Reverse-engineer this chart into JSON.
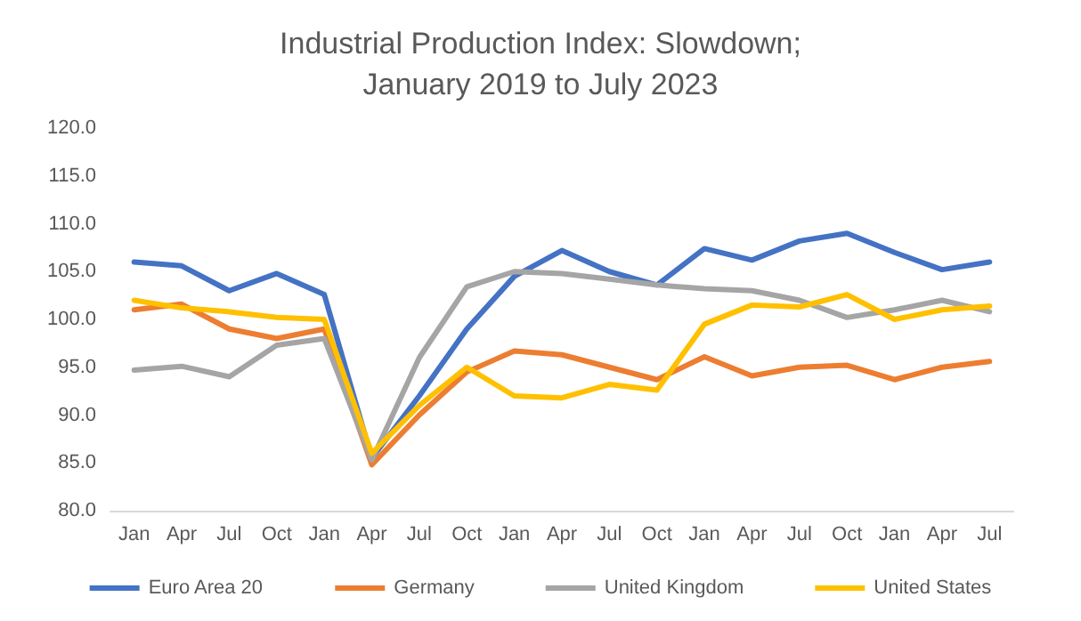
{
  "chart_data": {
    "type": "line",
    "title": "Industrial Production Index: Slowdown;\nJanuary 2019 to July 2023",
    "categories": [
      "Jan",
      "Apr",
      "Jul",
      "Oct",
      "Jan",
      "Apr",
      "Jul",
      "Oct",
      "Jan",
      "Apr",
      "Jul",
      "Oct",
      "Jan",
      "Apr",
      "Jul",
      "Oct",
      "Jan",
      "Apr",
      "Jul"
    ],
    "series": [
      {
        "name": "Euro Area 20",
        "color": "#4472c4",
        "values": [
          106,
          105.6,
          103,
          104.8,
          102.6,
          85.5,
          92,
          99,
          104.5,
          107.2,
          105,
          103.6,
          107.4,
          106.2,
          108.2,
          109,
          107,
          105.2,
          106
        ]
      },
      {
        "name": "Germany",
        "color": "#ed7d31",
        "values": [
          101,
          101.6,
          99,
          98,
          99,
          84.8,
          90,
          94.5,
          96.7,
          96.3,
          95,
          93.7,
          96.1,
          94.1,
          95,
          95.2,
          93.7,
          95,
          95.6
        ]
      },
      {
        "name": "United Kingdom",
        "color": "#a5a5a5",
        "values": [
          94.7,
          95.1,
          94,
          97.3,
          98,
          85.3,
          96,
          103.4,
          105,
          104.8,
          104.2,
          103.6,
          103.2,
          103,
          102,
          100.2,
          101,
          102,
          100.8
        ]
      },
      {
        "name": "United States",
        "color": "#ffc000",
        "values": [
          102,
          101.2,
          100.8,
          100.2,
          100,
          86,
          91,
          95,
          92,
          91.8,
          93.2,
          92.6,
          99.5,
          101.5,
          101.3,
          102.6,
          100,
          101,
          101.4
        ]
      }
    ],
    "ylim": [
      80,
      120
    ],
    "yticks": [
      {
        "value": 80,
        "label": "80.0"
      },
      {
        "value": 85,
        "label": "85.0"
      },
      {
        "value": 90,
        "label": "90.0"
      },
      {
        "value": 95,
        "label": "95.0"
      },
      {
        "value": 100,
        "label": "100.0"
      },
      {
        "value": 105,
        "label": "105.0"
      },
      {
        "value": 110,
        "label": "110.0"
      },
      {
        "value": 115,
        "label": "115.0"
      },
      {
        "value": 120,
        "label": "120.0"
      }
    ],
    "grid": false,
    "legend": "bottom",
    "marker": "none",
    "line_style": "solid"
  }
}
